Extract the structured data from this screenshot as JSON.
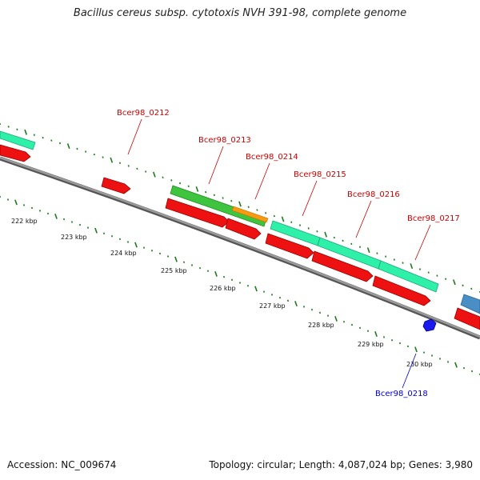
{
  "title": "Bacillus cereus subsp. cytotoxis NVH 391-98, complete genome",
  "footer": {
    "accession": "Accession: NC_009674",
    "info": "Topology: circular; Length: 4,087,024 bp; Genes: 3,980"
  },
  "colors": {
    "backbone": "#8a8a8a",
    "forward_cds": "#2ef0a8",
    "reverse_cds": "#ee1111",
    "green_gene": "#3ec43e",
    "orange_feature": "#f79a10",
    "blue_feature": "#1a1aee",
    "steel_feature": "#4a8ec6",
    "tick": "#1e7a1e",
    "label_red": "#cc0000",
    "label_blue": "#0000cc"
  },
  "scale": {
    "ticks": [
      "222 kbp",
      "223 kbp",
      "224 kbp",
      "225 kbp",
      "226 kbp",
      "227 kbp",
      "228 kbp",
      "229 kbp",
      "230 kbp"
    ]
  },
  "genes": [
    {
      "name": "Bcer98_0212",
      "color": "red"
    },
    {
      "name": "Bcer98_0213",
      "color": "red"
    },
    {
      "name": "Bcer98_0214",
      "color": "red"
    },
    {
      "name": "Bcer98_0215",
      "color": "red"
    },
    {
      "name": "Bcer98_0216",
      "color": "red"
    },
    {
      "name": "Bcer98_0217",
      "color": "red"
    },
    {
      "name": "Bcer98_0218",
      "color": "blue"
    }
  ]
}
